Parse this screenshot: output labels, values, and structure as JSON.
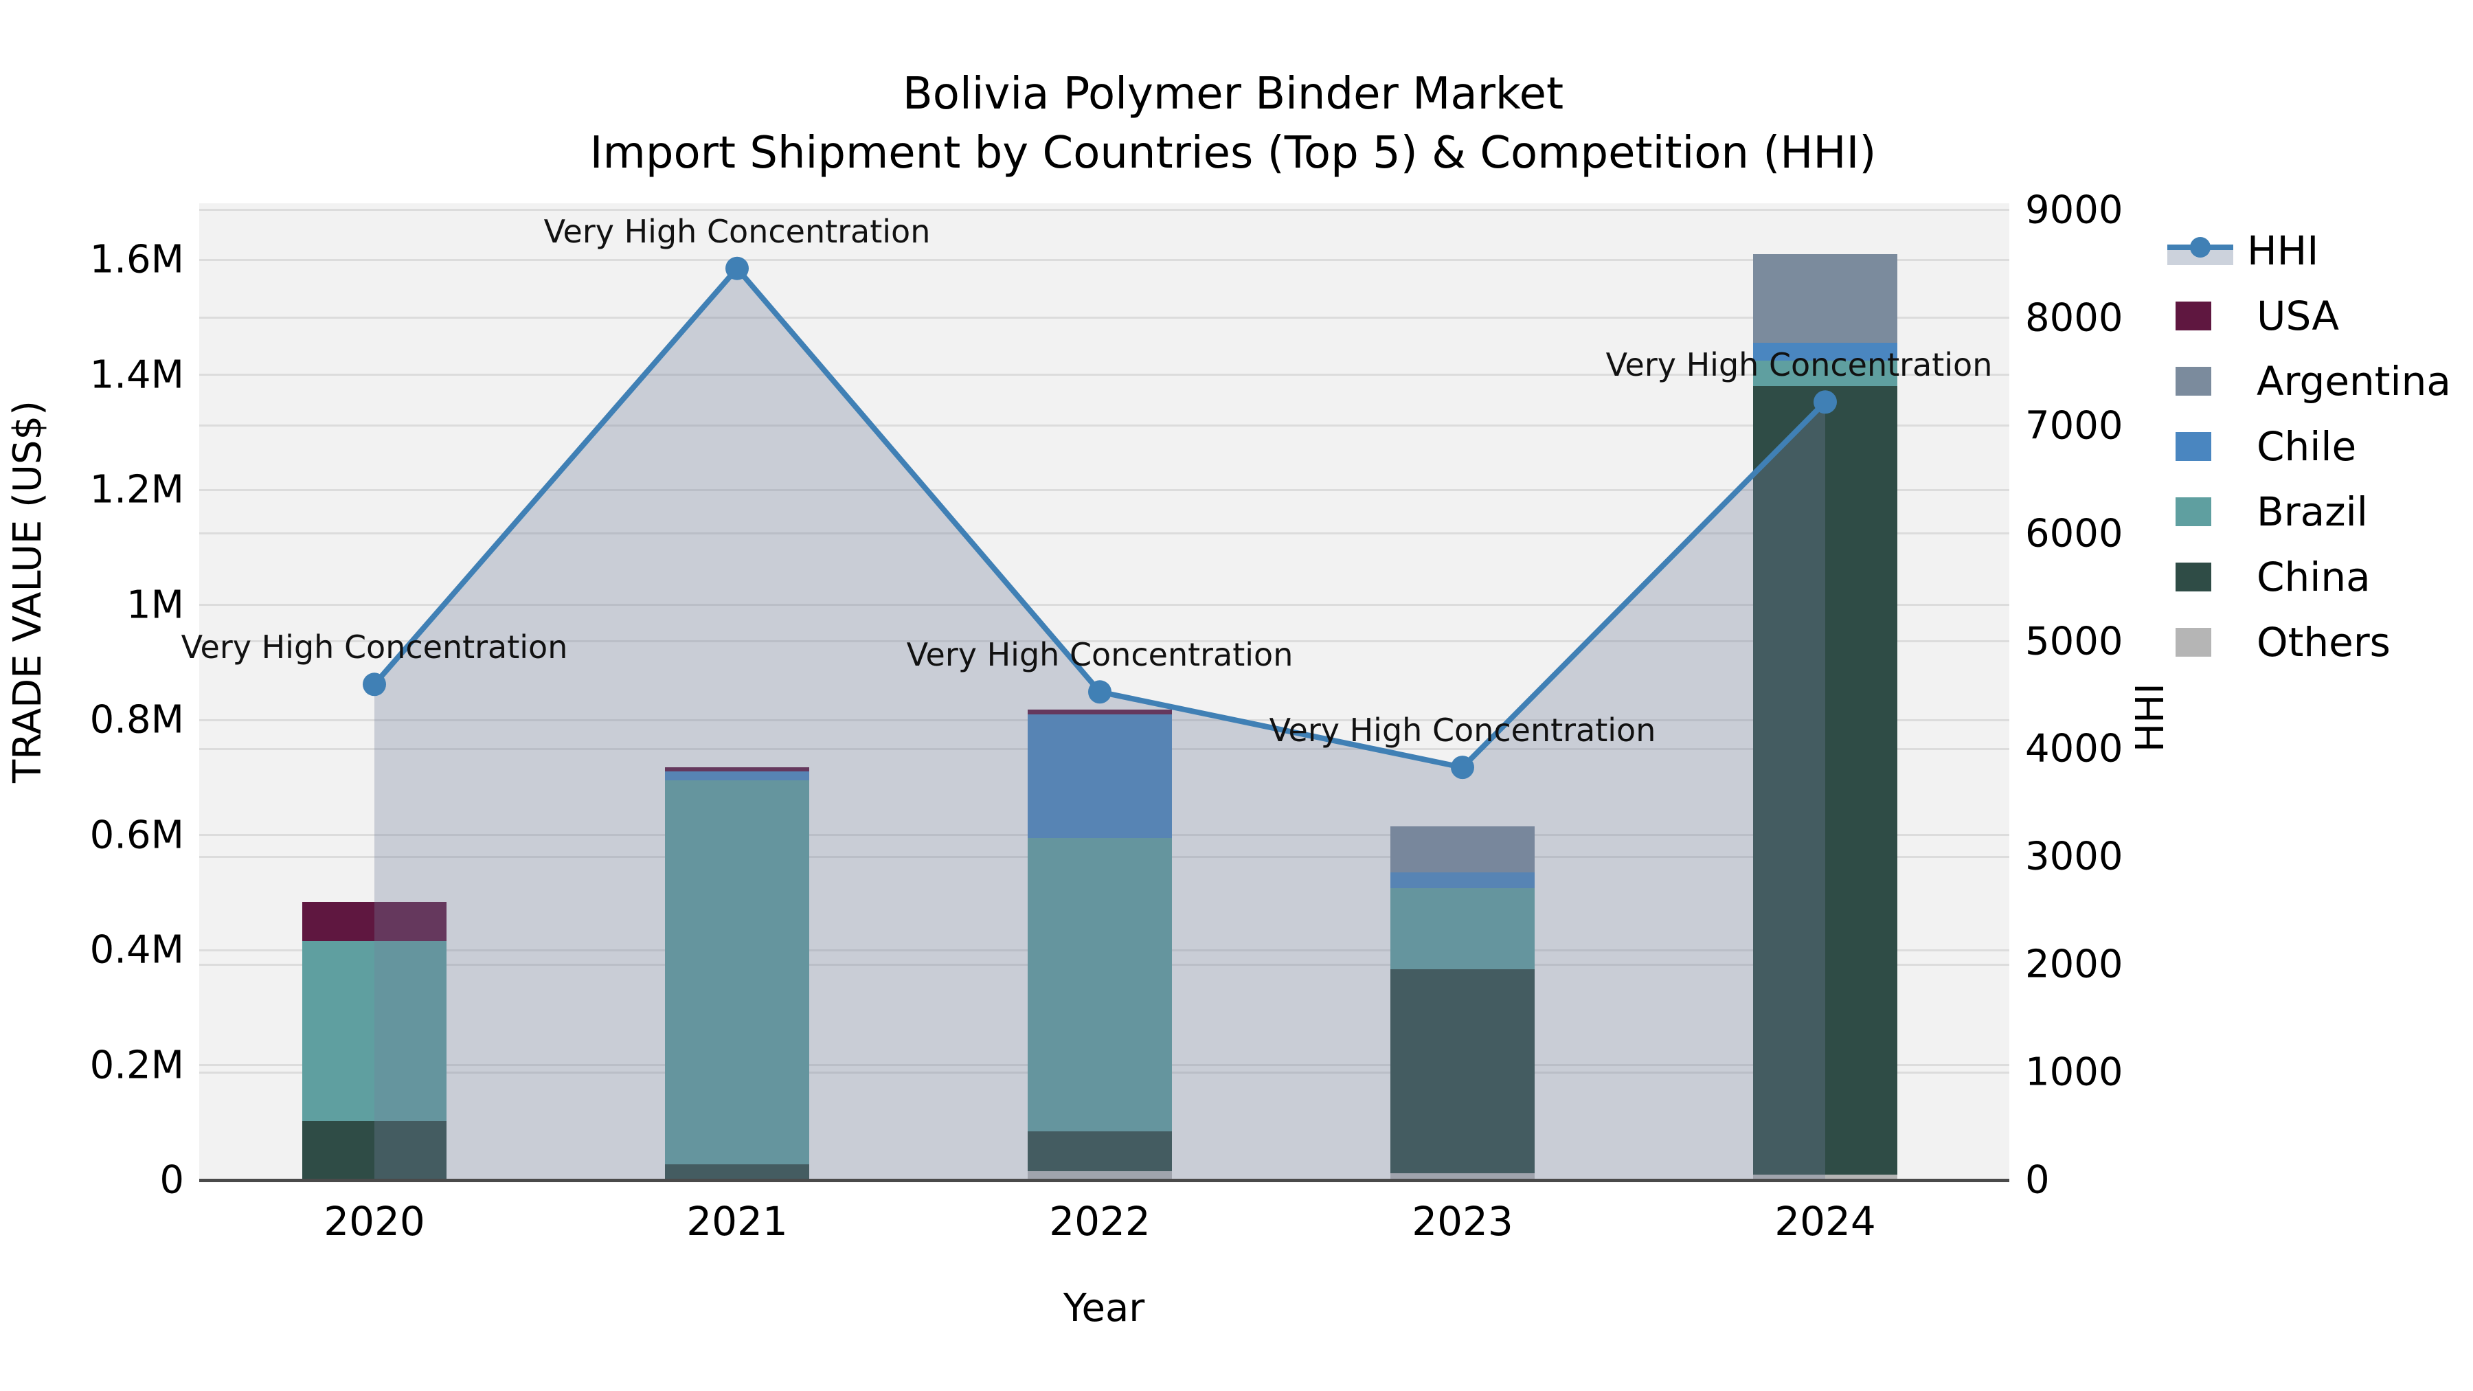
{
  "title": {
    "line1": "Bolivia Polymer Binder Market",
    "line2": "Import Shipment by Countries (Top 5) & Competition (HHI)"
  },
  "axes": {
    "left_label": "TRADE VALUE (US$)",
    "right_label": "HHI",
    "x_label": "Year",
    "left_ticks": [
      {
        "label": "0",
        "value": 0
      },
      {
        "label": "0.2M",
        "value": 200000
      },
      {
        "label": "0.4M",
        "value": 400000
      },
      {
        "label": "0.6M",
        "value": 600000
      },
      {
        "label": "0.8M",
        "value": 800000
      },
      {
        "label": "1M",
        "value": 1000000
      },
      {
        "label": "1.2M",
        "value": 1200000
      },
      {
        "label": "1.4M",
        "value": 1400000
      },
      {
        "label": "1.6M",
        "value": 1600000
      }
    ],
    "right_ticks": [
      {
        "label": "0",
        "value": 0
      },
      {
        "label": "1000",
        "value": 1000
      },
      {
        "label": "2000",
        "value": 2000
      },
      {
        "label": "3000",
        "value": 3000
      },
      {
        "label": "4000",
        "value": 4000
      },
      {
        "label": "5000",
        "value": 5000
      },
      {
        "label": "6000",
        "value": 6000
      },
      {
        "label": "7000",
        "value": 7000
      },
      {
        "label": "8000",
        "value": 8000
      },
      {
        "label": "9000",
        "value": 9000
      }
    ]
  },
  "legend": {
    "items": [
      {
        "label": "HHI",
        "type": "line",
        "color": "#4080b5",
        "band": "#ccd2dc"
      },
      {
        "label": "USA",
        "type": "patch",
        "color": "#5f1740"
      },
      {
        "label": "Argentina",
        "type": "patch",
        "color": "#7b8b9d"
      },
      {
        "label": "Chile",
        "type": "patch",
        "color": "#4a86c0"
      },
      {
        "label": "Brazil",
        "type": "patch",
        "color": "#5f9fa0"
      },
      {
        "label": "China",
        "type": "patch",
        "color": "#2f4c46"
      },
      {
        "label": "Others",
        "type": "patch",
        "color": "#b5b5b5"
      }
    ]
  },
  "chart_data": {
    "type": "bar",
    "subtype": "stacked-bars-with-line",
    "title": "Bolivia Polymer Binder Market — Import Shipment by Countries (Top 5) & Competition (HHI)",
    "xlabel": "Year",
    "ylabel_left": "TRADE VALUE (US$)",
    "ylabel_right": "HHI",
    "categories": [
      "2020",
      "2021",
      "2022",
      "2023",
      "2024"
    ],
    "series": [
      {
        "name": "Others",
        "color": "#b5b5b5",
        "values": [
          0,
          0,
          15000,
          12000,
          10000
        ]
      },
      {
        "name": "China",
        "color": "#2f4c46",
        "values": [
          103000,
          27000,
          70000,
          355000,
          1370000
        ]
      },
      {
        "name": "Brazil",
        "color": "#5f9fa0",
        "values": [
          313000,
          668000,
          510000,
          140000,
          45000
        ]
      },
      {
        "name": "Chile",
        "color": "#4a86c0",
        "values": [
          0,
          15000,
          215000,
          28000,
          30000
        ]
      },
      {
        "name": "Argentina",
        "color": "#7b8b9d",
        "values": [
          0,
          0,
          0,
          80000,
          155000
        ]
      },
      {
        "name": "USA",
        "color": "#5f1740",
        "values": [
          68000,
          8000,
          8000,
          0,
          0
        ]
      }
    ],
    "bar_totals": [
      484000,
      718000,
      818000,
      615000,
      1610000
    ],
    "line_series": {
      "name": "HHI",
      "color": "#4080b5",
      "fill": "rgba(114,126,155,0.32)",
      "values": [
        4600,
        8460,
        4530,
        3830,
        7220
      ]
    },
    "annotations": [
      "Very High Concentration",
      "Very High Concentration",
      "Very High Concentration",
      "Very High Concentration",
      "Very High Concentration"
    ],
    "ylim_left": [
      0,
      1700000
    ],
    "ylim_right": [
      0,
      9070
    ],
    "grid": true,
    "legend_position": "right"
  }
}
